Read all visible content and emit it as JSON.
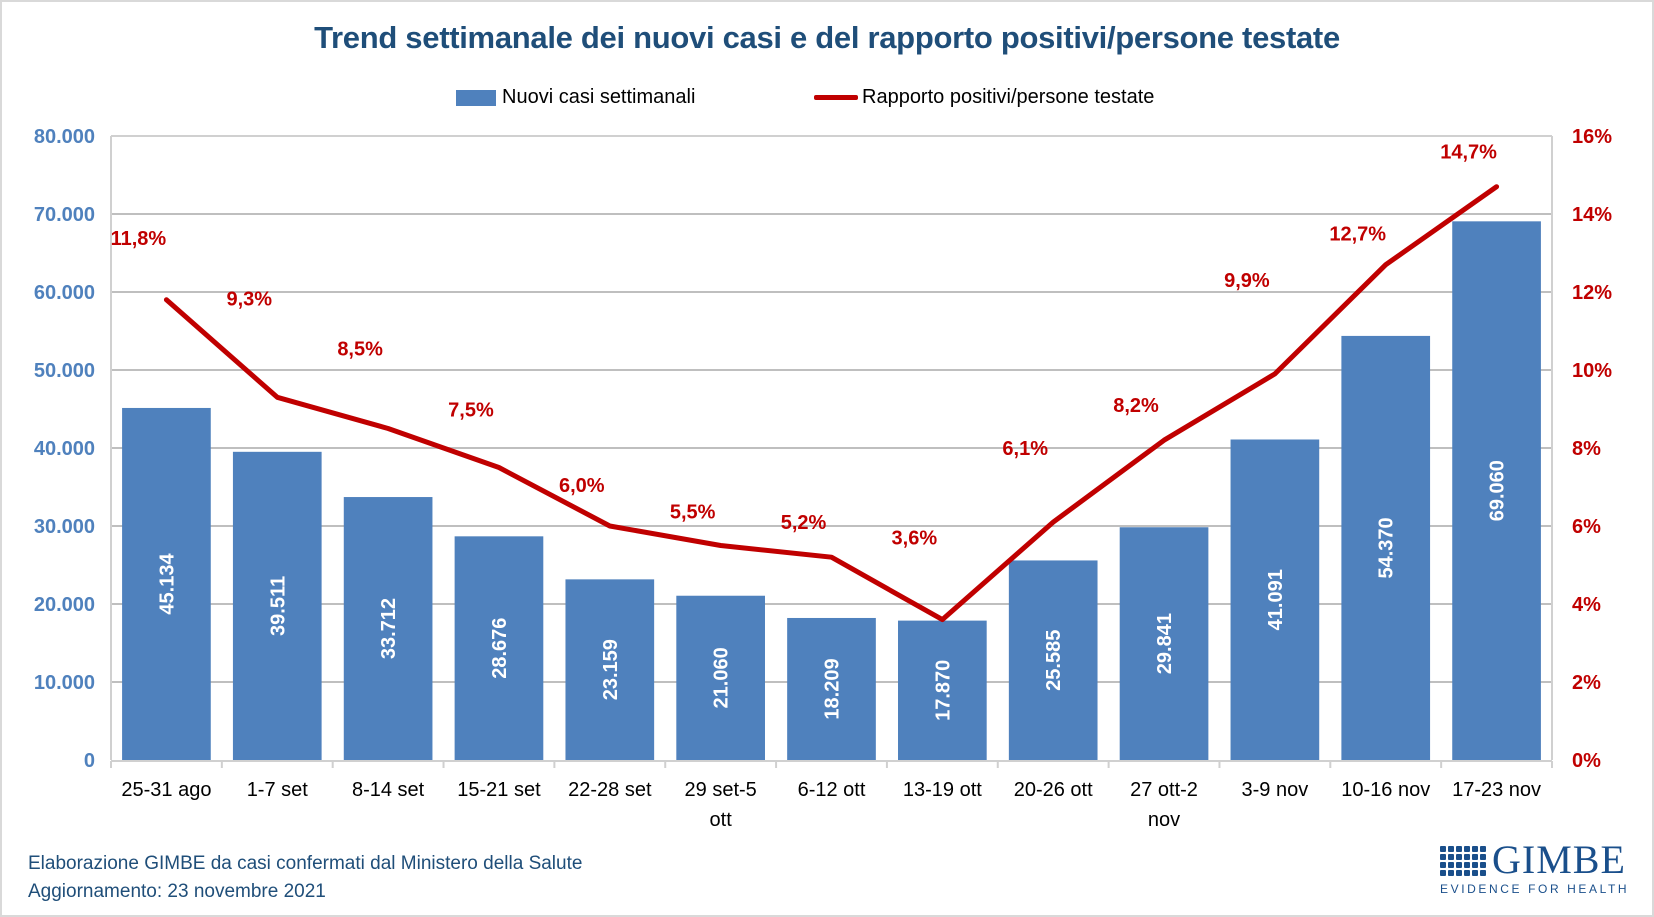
{
  "chart_data": {
    "type": "bar",
    "title": "Trend settimanale dei nuovi casi e del rapporto positivi/persone testate",
    "xlabel": "",
    "ylabel": "",
    "y2label": "",
    "categories": [
      "25-31 ago",
      "1-7 set",
      "8-14 set",
      "15-21 set",
      "22-28 set",
      "29 set-5 ott",
      "6-12 ott",
      "13-19 ott",
      "20-26 ott",
      "27 ott-2 nov",
      "3-9 nov",
      "10-16 nov",
      "17-23 nov"
    ],
    "category_lines": [
      [
        "25-31 ago"
      ],
      [
        "1-7 set"
      ],
      [
        "8-14 set"
      ],
      [
        "15-21 set"
      ],
      [
        "22-28 set"
      ],
      [
        "29 set-5",
        "ott"
      ],
      [
        "6-12 ott"
      ],
      [
        "13-19 ott"
      ],
      [
        "20-26 ott"
      ],
      [
        "27 ott-2",
        "nov"
      ],
      [
        "3-9 nov"
      ],
      [
        "10-16 nov"
      ],
      [
        "17-23 nov"
      ]
    ],
    "series": [
      {
        "name": "Nuovi casi settimanali",
        "type": "bar",
        "axis": "left",
        "color": "#4f81bd",
        "values": [
          45134,
          39511,
          33712,
          28676,
          23159,
          21060,
          18209,
          17870,
          25585,
          29841,
          41091,
          54370,
          69060
        ],
        "labels": [
          "45.134",
          "39.511",
          "33.712",
          "28.676",
          "23.159",
          "21.060",
          "18.209",
          "17.870",
          "25.585",
          "29.841",
          "41.091",
          "54.370",
          "69.060"
        ]
      },
      {
        "name": "Rapporto positivi/persone testate",
        "type": "line",
        "axis": "right",
        "color": "#c00000",
        "values": [
          11.8,
          9.3,
          8.5,
          7.5,
          6.0,
          5.5,
          5.2,
          3.6,
          6.1,
          8.2,
          9.9,
          12.7,
          14.7
        ],
        "labels": [
          "11,8%",
          "9,3%",
          "8,5%",
          "7,5%",
          "6,0%",
          "5,5%",
          "5,2%",
          "3,6%",
          "6,1%",
          "8,2%",
          "9,9%",
          "12,7%",
          "14,7%"
        ]
      }
    ],
    "ylim": [
      0,
      80000
    ],
    "y2lim": [
      0,
      16
    ],
    "yticks": [
      0,
      10000,
      20000,
      30000,
      40000,
      50000,
      60000,
      70000,
      80000
    ],
    "ytick_labels": [
      "0",
      "10.000",
      "20.000",
      "30.000",
      "40.000",
      "50.000",
      "60.000",
      "70.000",
      "80.000"
    ],
    "y2ticks": [
      0,
      2,
      4,
      6,
      8,
      10,
      12,
      14,
      16
    ],
    "y2tick_labels": [
      "0%",
      "2%",
      "4%",
      "6%",
      "8%",
      "10%",
      "12%",
      "14%",
      "16%"
    ],
    "grid": true,
    "legend": "top-center",
    "colors": {
      "title": "#1f4e79",
      "left_axis": "#4f81bd",
      "right_axis": "#c00000",
      "gridline": "#bfbfbf"
    }
  },
  "legend": {
    "bar_label": "Nuovi casi settimanali",
    "line_label": "Rapporto positivi/persone testate"
  },
  "footer": {
    "source": "Elaborazione GIMBE da casi confermati dal Ministero della Salute",
    "updated": "Aggiornamento: 23 novembre 2021"
  },
  "logo": {
    "name": "GIMBE",
    "tagline": "EVIDENCE FOR HEALTH"
  }
}
